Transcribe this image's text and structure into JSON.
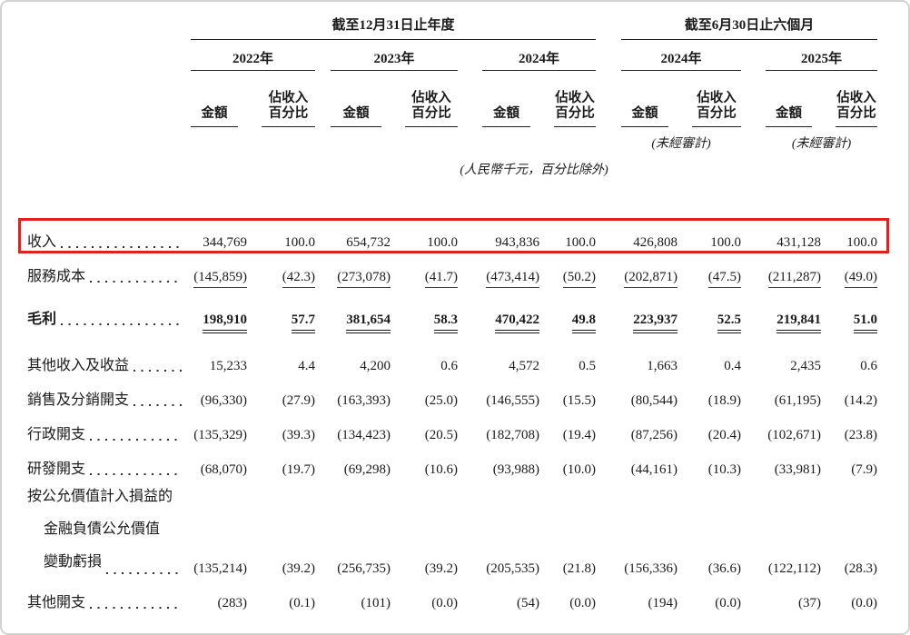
{
  "page": {
    "period_headers": [
      "截至12月31日止年度",
      "截至6月30日止六個月"
    ],
    "year_headers": [
      "2022年",
      "2023年",
      "2024年",
      "2024年",
      "2025年"
    ],
    "column_headers": {
      "amount": "金額",
      "pct_line1": "佔收入",
      "pct_line2": "百分比"
    },
    "unaudited_note": "(未經審計)",
    "currency_note": "(人民幣千元，百分比除外)",
    "highlight_color": "#e3201b",
    "rows": [
      {
        "label": "收入",
        "highlight": true,
        "style": "plain",
        "values": [
          "344,769",
          "100.0",
          "654,732",
          "100.0",
          "943,836",
          "100.0",
          "426,808",
          "100.0",
          "431,128",
          "100.0"
        ]
      },
      {
        "label": "服務成本",
        "style": "underline",
        "values": [
          "(145,859)",
          "(42.3)",
          "(273,078)",
          "(41.7)",
          "(473,414)",
          "(50.2)",
          "(202,871)",
          "(47.5)",
          "(211,287)",
          "(49.0)"
        ]
      },
      {
        "label": "毛利",
        "style": "bold-double",
        "values": [
          "198,910",
          "57.7",
          "381,654",
          "58.3",
          "470,422",
          "49.8",
          "223,937",
          "52.5",
          "219,841",
          "51.0"
        ]
      },
      {
        "label": "其他收入及收益",
        "style": "plain",
        "values": [
          "15,233",
          "4.4",
          "4,200",
          "0.6",
          "4,572",
          "0.5",
          "1,663",
          "0.4",
          "2,435",
          "0.6"
        ]
      },
      {
        "label": "銷售及分銷開支",
        "style": "plain",
        "values": [
          "(96,330)",
          "(27.9)",
          "(163,393)",
          "(25.0)",
          "(146,555)",
          "(15.5)",
          "(80,544)",
          "(18.9)",
          "(61,195)",
          "(14.2)"
        ]
      },
      {
        "label": "行政開支",
        "style": "plain",
        "values": [
          "(135,329)",
          "(39.3)",
          "(134,423)",
          "(20.5)",
          "(182,708)",
          "(19.4)",
          "(87,256)",
          "(20.4)",
          "(102,671)",
          "(23.8)"
        ]
      },
      {
        "label": "研發開支",
        "style": "plain",
        "values": [
          "(68,070)",
          "(19.7)",
          "(69,298)",
          "(10.6)",
          "(93,988)",
          "(10.0)",
          "(44,161)",
          "(10.3)",
          "(33,981)",
          "(7.9)"
        ]
      },
      {
        "label_lines": [
          "按公允價值計入損益的",
          "金融負債公允價值",
          "變動虧損"
        ],
        "style": "plain",
        "values": [
          "(135,214)",
          "(39.2)",
          "(256,735)",
          "(39.2)",
          "(205,535)",
          "(21.8)",
          "(156,336)",
          "(36.6)",
          "(122,112)",
          "(28.3)"
        ]
      },
      {
        "label": "其他開支",
        "style": "plain",
        "values": [
          "(283)",
          "(0.1)",
          "(101)",
          "(0.0)",
          "(54)",
          "(0.0)",
          "(194)",
          "(0.0)",
          "(37)",
          "(0.0)"
        ]
      }
    ]
  }
}
